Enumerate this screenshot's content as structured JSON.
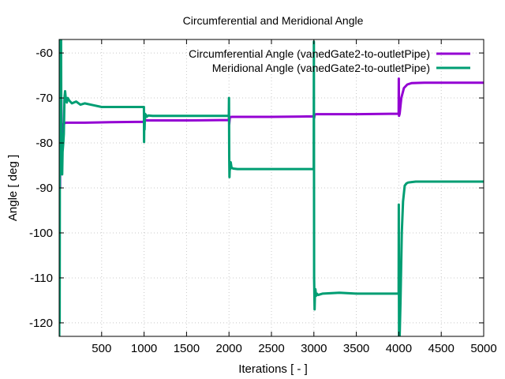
{
  "chart_data": {
    "type": "line",
    "title": "Circumferential and Meridional Angle",
    "xlabel": "Iterations [ - ]",
    "ylabel": "Angle [ deg ]",
    "xlim": [
      0,
      5000
    ],
    "ylim": [
      -123,
      -57
    ],
    "xticks": [
      500,
      1000,
      1500,
      2000,
      2500,
      3000,
      3500,
      4000,
      4500,
      5000
    ],
    "yticks": [
      -60,
      -70,
      -80,
      -90,
      -100,
      -110,
      -120
    ],
    "grid": true,
    "legend_position": "top-right",
    "series": [
      {
        "name": "Circumferential Angle (vanedGate2-to-outletPipe)",
        "color": "#9400d3",
        "x": [
          1,
          5,
          10,
          15,
          20,
          25,
          30,
          40,
          60,
          80,
          100,
          300,
          600,
          998,
          1000,
          1003,
          1010,
          1030,
          1100,
          1500,
          1998,
          2000,
          2003,
          2010,
          2030,
          2100,
          2500,
          2998,
          3000,
          3003,
          3010,
          3030,
          3100,
          3500,
          3998,
          4000,
          4003,
          4010,
          4030,
          4060,
          4100,
          4150,
          4300,
          4600,
          5000
        ],
        "y": [
          -88,
          -60,
          -90,
          -65,
          -85,
          -70,
          -80,
          -76,
          -75.6,
          -75.5,
          -75.5,
          -75.5,
          -75.4,
          -75.3,
          -74.2,
          -75.6,
          -74.8,
          -75.0,
          -75.0,
          -75.0,
          -74.9,
          -74.0,
          -75.8,
          -74.3,
          -74.2,
          -74.2,
          -74.2,
          -74.1,
          -73.7,
          -74.5,
          -73.7,
          -73.6,
          -73.6,
          -73.6,
          -73.5,
          -65.7,
          -74.0,
          -73.5,
          -70.0,
          -67.8,
          -67.0,
          -66.7,
          -66.6,
          -66.6,
          -66.6
        ]
      },
      {
        "name": "Meridional Angle (vanedGate2-to-outletPipe)",
        "color": "#009e73",
        "x": [
          1,
          3,
          6,
          9,
          12,
          15,
          18,
          22,
          26,
          30,
          35,
          40,
          48,
          55,
          62,
          70,
          80,
          90,
          100,
          120,
          150,
          200,
          250,
          300,
          400,
          500,
          700,
          998,
          1000,
          1003,
          1006,
          1010,
          1015,
          1020,
          1030,
          1050,
          1100,
          1300,
          1600,
          1998,
          2000,
          2003,
          2006,
          2010,
          2015,
          2020,
          2030,
          2050,
          2100,
          2500,
          2998,
          3000,
          3003,
          3008,
          3012,
          3018,
          3025,
          3035,
          3050,
          3100,
          3300,
          3500,
          3700,
          3998,
          4000,
          4003,
          4006,
          4010,
          4020,
          4035,
          4050,
          4070,
          4090,
          4110,
          4150,
          4200,
          4300,
          4600,
          5000
        ],
        "y": [
          -123,
          -68,
          -120,
          -60,
          -85,
          -57,
          -62,
          -57,
          -84,
          -78,
          -87,
          -82,
          -80,
          -78,
          -70,
          -68.5,
          -70.5,
          -71,
          -70,
          -70.6,
          -71.2,
          -70.8,
          -71.5,
          -71.2,
          -71.6,
          -72,
          -72,
          -72,
          -79.8,
          -74,
          -77,
          -73.5,
          -74.2,
          -73.7,
          -74.2,
          -73.9,
          -74.0,
          -74.0,
          -74.0,
          -74.0,
          -70,
          -83,
          -87.6,
          -84.8,
          -85.8,
          -84.3,
          -85.5,
          -85.7,
          -85.8,
          -85.8,
          -85.8,
          -57.5,
          -110,
          -117,
          -114,
          -112.5,
          -114,
          -113.5,
          -113.8,
          -113.5,
          -113.3,
          -113.5,
          -113.5,
          -113.5,
          -93.7,
          -123,
          -123,
          -123,
          -115,
          -100,
          -93,
          -89.5,
          -89,
          -88.8,
          -88.7,
          -88.6,
          -88.6,
          -88.6,
          -88.6
        ]
      }
    ]
  }
}
